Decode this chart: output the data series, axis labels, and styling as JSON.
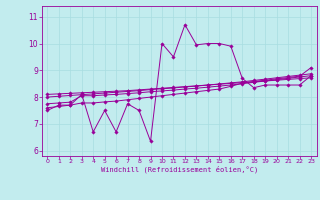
{
  "xlabel": "Windchill (Refroidissement éolien,°C)",
  "background_color": "#c2ecee",
  "grid_color": "#a8dde0",
  "line_color": "#990099",
  "xlim": [
    -0.5,
    23.5
  ],
  "ylim": [
    5.8,
    11.4
  ],
  "yticks": [
    6,
    7,
    8,
    9,
    10,
    11
  ],
  "xticks": [
    0,
    1,
    2,
    3,
    4,
    5,
    6,
    7,
    8,
    9,
    10,
    11,
    12,
    13,
    14,
    15,
    16,
    17,
    18,
    19,
    20,
    21,
    22,
    23
  ],
  "x_data": [
    0,
    1,
    2,
    3,
    4,
    5,
    6,
    7,
    8,
    9,
    10,
    11,
    12,
    13,
    14,
    15,
    16,
    17,
    18,
    19,
    20,
    21,
    22,
    23
  ],
  "y_main": [
    7.5,
    7.7,
    7.7,
    8.1,
    6.7,
    7.5,
    6.7,
    7.75,
    7.5,
    6.35,
    10.0,
    9.5,
    10.7,
    9.95,
    10.0,
    10.0,
    9.9,
    8.7,
    8.35,
    8.45,
    8.45,
    8.45,
    8.45,
    8.8
  ],
  "y_line2": [
    7.75,
    7.78,
    7.81,
    8.05,
    8.05,
    8.08,
    8.1,
    8.13,
    8.16,
    8.2,
    8.23,
    8.26,
    8.3,
    8.33,
    8.37,
    8.41,
    8.45,
    8.5,
    8.55,
    8.6,
    8.65,
    8.7,
    8.75,
    8.8
  ],
  "y_line3": [
    8.0,
    8.03,
    8.06,
    8.09,
    8.12,
    8.15,
    8.18,
    8.21,
    8.24,
    8.28,
    8.31,
    8.34,
    8.38,
    8.41,
    8.45,
    8.49,
    8.53,
    8.57,
    8.62,
    8.67,
    8.72,
    8.77,
    8.82,
    8.87
  ],
  "y_line4": [
    8.1,
    8.12,
    8.14,
    8.16,
    8.18,
    8.2,
    8.22,
    8.24,
    8.27,
    8.3,
    8.33,
    8.36,
    8.39,
    8.42,
    8.45,
    8.48,
    8.51,
    8.54,
    8.57,
    8.6,
    8.63,
    8.66,
    8.69,
    8.72
  ],
  "y_line5": [
    7.6,
    7.65,
    7.7,
    7.78,
    7.78,
    7.82,
    7.85,
    7.9,
    7.95,
    8.0,
    8.05,
    8.1,
    8.15,
    8.2,
    8.25,
    8.3,
    8.4,
    8.52,
    8.58,
    8.63,
    8.68,
    8.73,
    8.78,
    9.1
  ]
}
